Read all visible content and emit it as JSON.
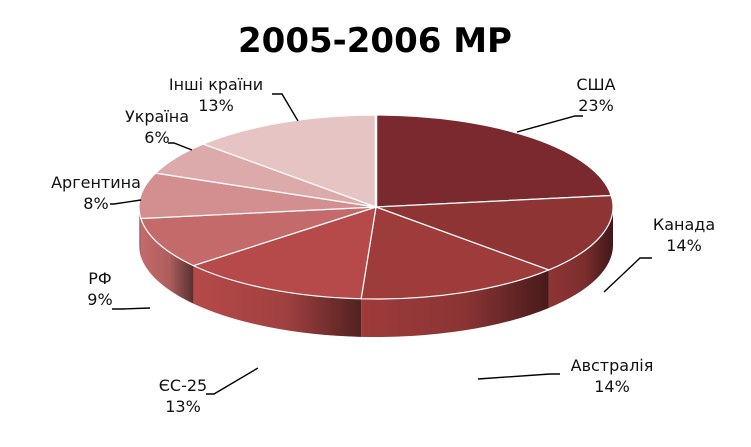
{
  "chart_data": {
    "type": "pie",
    "title": "2005-2006 МР",
    "categories": [
      "США",
      "Канада",
      "Австралія",
      "ЄС-25",
      "РФ",
      "Аргентина",
      "Україна",
      "Інші країни"
    ],
    "values": [
      23,
      14,
      14,
      13,
      9,
      8,
      6,
      13
    ],
    "value_labels": [
      "23%",
      "14%",
      "14%",
      "13%",
      "9%",
      "8%",
      "6%",
      "13%"
    ],
    "colors": [
      "#7a2a2e",
      "#8e3434",
      "#9e3b3b",
      "#b64949",
      "#c46a6a",
      "#d38f8f",
      "#dcaaaa",
      "#e6c4c4"
    ],
    "legend": "none",
    "style": "3d"
  }
}
